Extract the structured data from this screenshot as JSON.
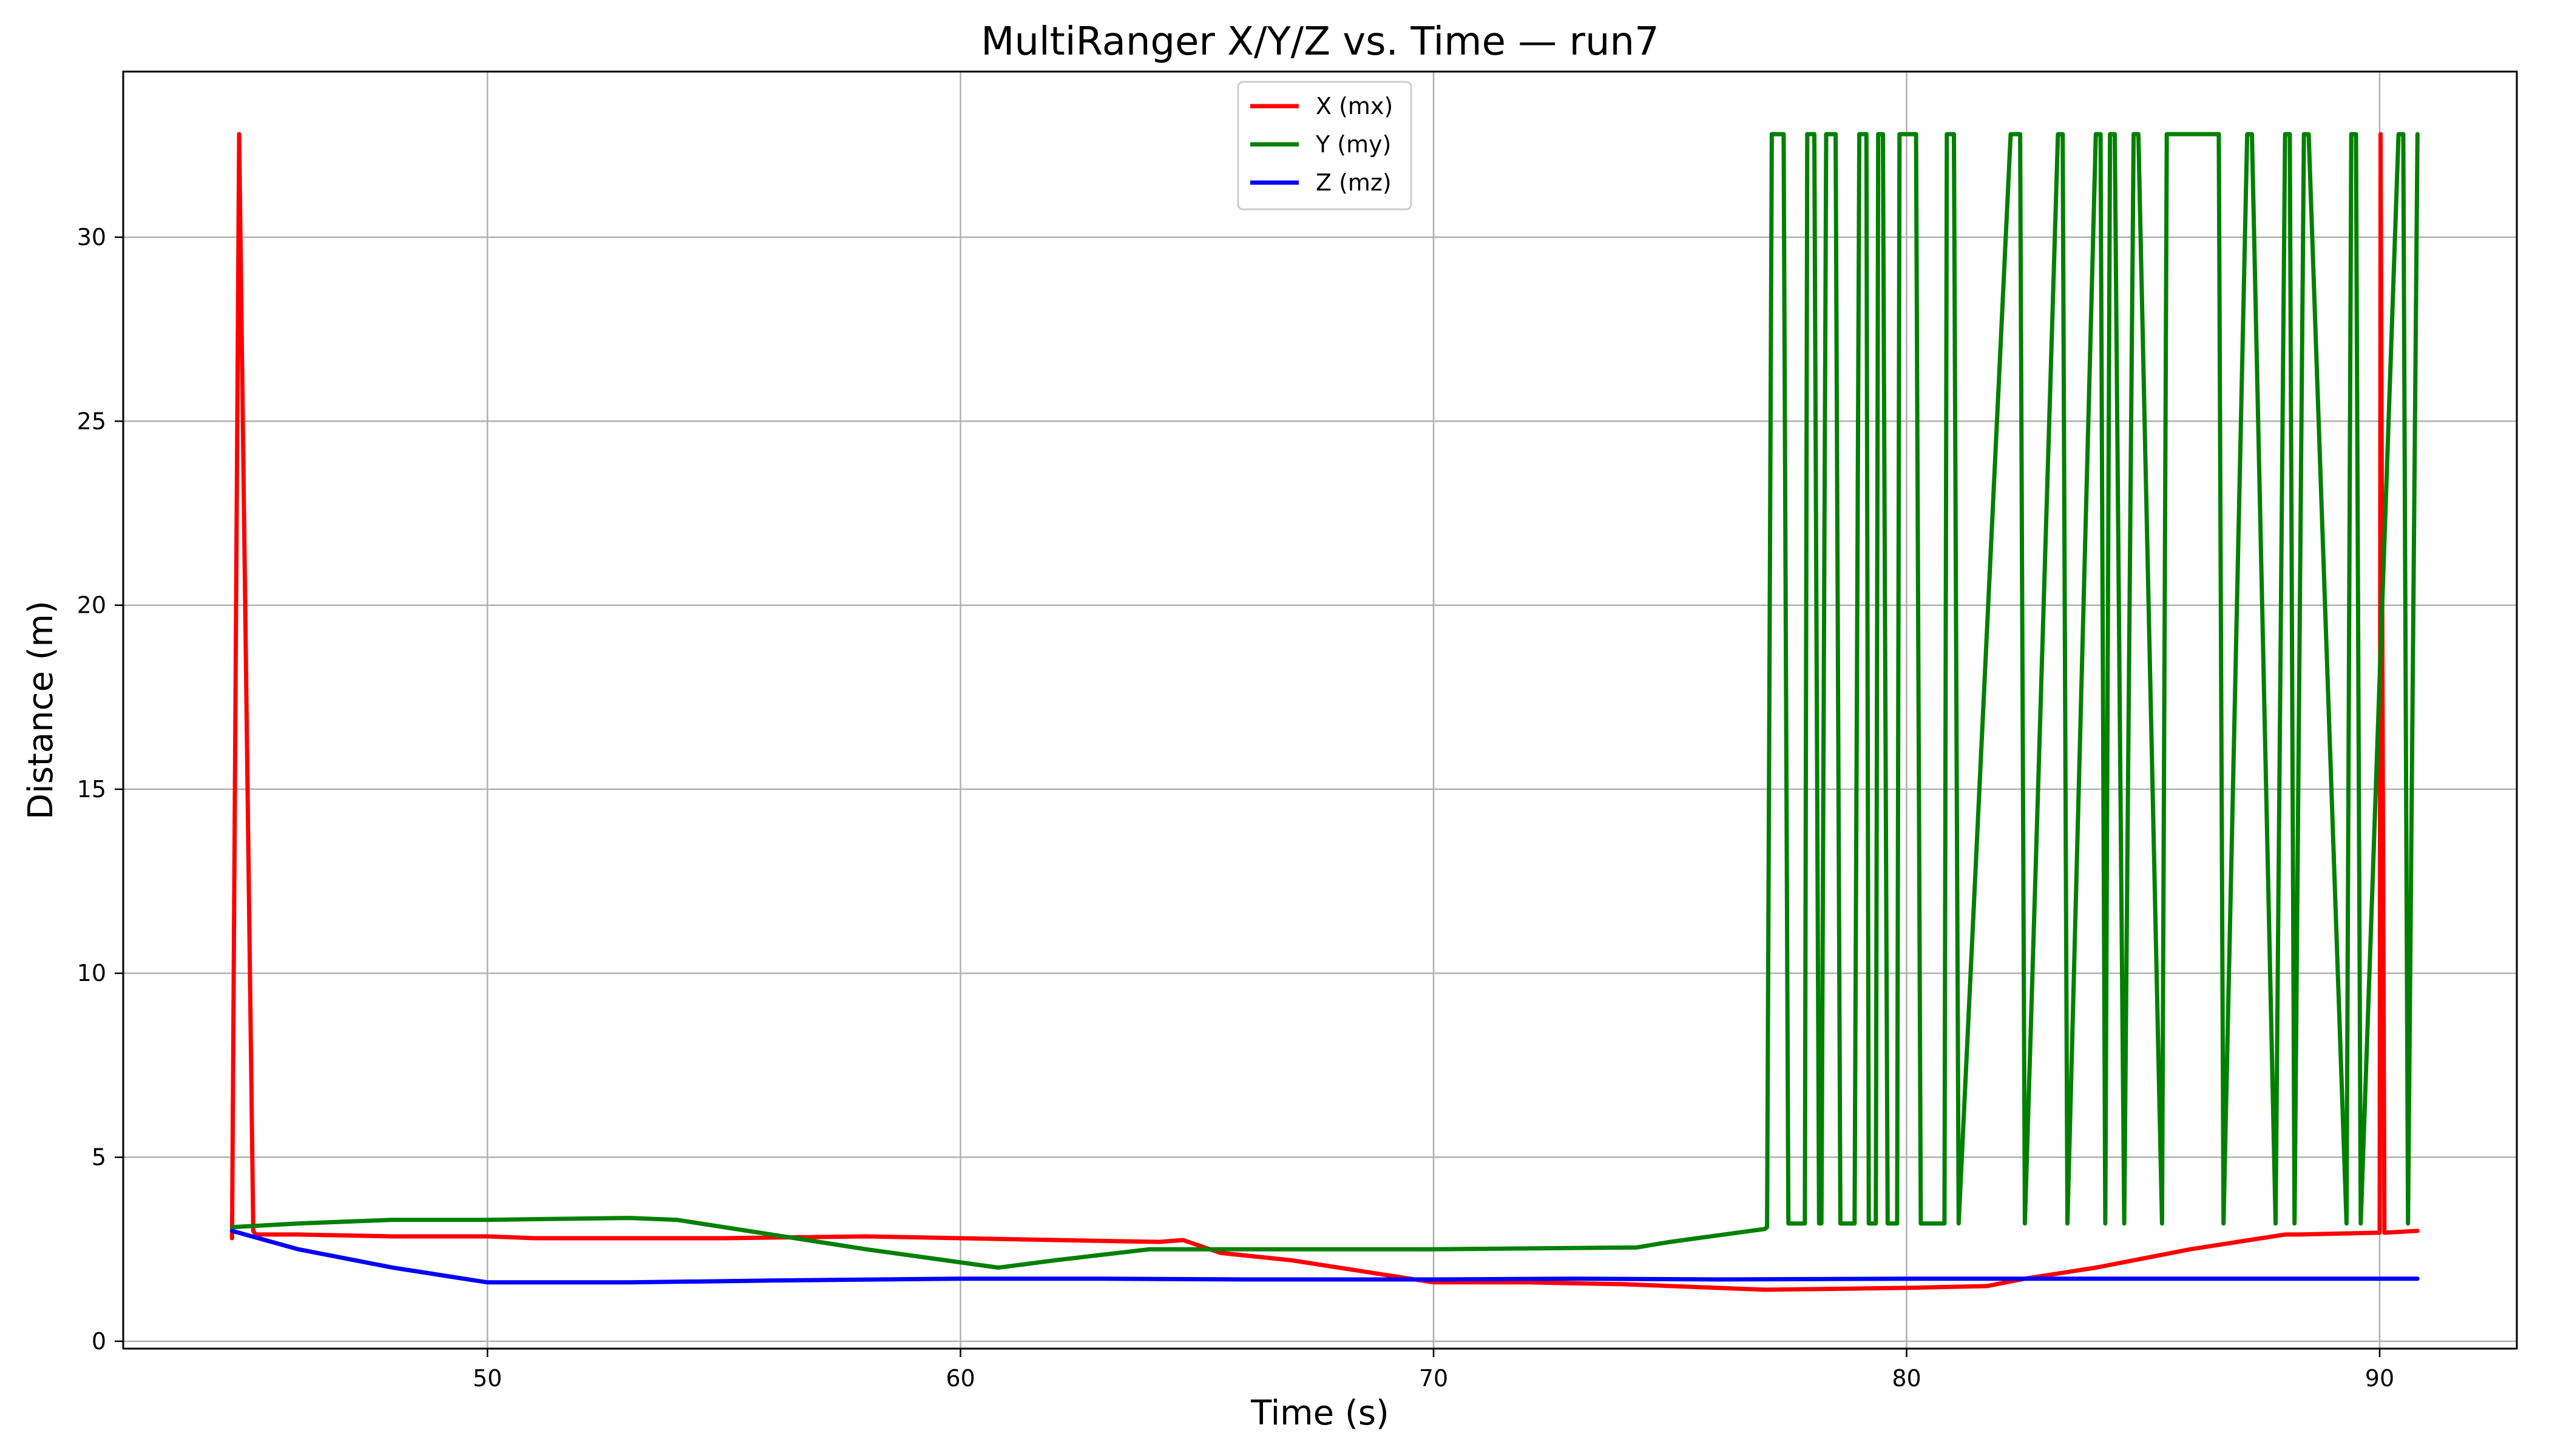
{
  "chart_data": {
    "type": "line",
    "title": "MultiRanger X/Y/Z vs. Time — run7",
    "xlabel": "Time (s)",
    "ylabel": "Distance (m)",
    "xlim": [
      42.3,
      92.9
    ],
    "ylim": [
      -0.2,
      34.5
    ],
    "xticks": [
      50,
      60,
      70,
      80,
      90
    ],
    "yticks": [
      0,
      5,
      10,
      15,
      20,
      25,
      30
    ],
    "grid": true,
    "legend_position": "top-center",
    "series": [
      {
        "name": "X (mx)",
        "color": "#ff0000",
        "x": [
          44.6,
          44.75,
          45.05,
          45.1,
          46,
          48,
          50,
          51,
          53,
          55,
          58,
          60,
          62,
          64.2,
          64.7,
          65.5,
          67,
          70,
          72,
          74,
          76,
          77,
          80,
          81.7,
          82.5,
          84,
          86,
          88,
          88.3,
          90,
          90.02,
          90.1,
          90.8
        ],
        "y": [
          2.8,
          32.8,
          3.0,
          2.9,
          2.9,
          2.85,
          2.85,
          2.8,
          2.8,
          2.8,
          2.85,
          2.8,
          2.75,
          2.7,
          2.75,
          2.4,
          2.2,
          1.6,
          1.6,
          1.55,
          1.45,
          1.4,
          1.45,
          1.5,
          1.7,
          2.0,
          2.5,
          2.9,
          2.9,
          2.95,
          32.8,
          2.95,
          3.0
        ]
      },
      {
        "name": "Y (my)",
        "color": "#008000",
        "x": [
          44.6,
          46,
          48,
          50,
          53,
          54,
          56,
          58,
          60.8,
          62,
          64,
          66,
          70,
          74.3,
          75,
          77,
          77.05,
          77.15,
          77.4,
          77.5,
          77.85,
          77.9,
          78.05,
          78.15,
          78.2,
          78.3,
          78.5,
          78.6,
          78.9,
          79.0,
          79.15,
          79.2,
          79.35,
          79.4,
          79.5,
          79.6,
          79.8,
          79.85,
          80.2,
          80.3,
          80.8,
          80.85,
          81.0,
          81.1,
          82.2,
          82.4,
          82.5,
          83.2,
          83.3,
          83.4,
          84.0,
          84.1,
          84.2,
          84.3,
          84.4,
          84.6,
          84.8,
          84.9,
          85.4,
          85.5,
          86.6,
          86.7,
          87.2,
          87.3,
          87.8,
          88.0,
          88.1,
          88.2,
          88.4,
          88.5,
          89.3,
          89.4,
          89.5,
          89.6,
          90.4,
          90.5,
          90.6,
          90.8
        ],
        "y": [
          3.1,
          3.2,
          3.3,
          3.3,
          3.35,
          3.3,
          2.9,
          2.5,
          2.0,
          2.2,
          2.5,
          2.5,
          2.5,
          2.55,
          2.7,
          3.05,
          3.1,
          32.8,
          32.8,
          3.2,
          3.2,
          32.8,
          32.8,
          3.2,
          3.2,
          32.8,
          32.8,
          3.2,
          3.2,
          32.8,
          32.8,
          3.2,
          3.2,
          32.8,
          32.8,
          3.2,
          3.2,
          32.8,
          32.8,
          3.2,
          3.2,
          32.8,
          32.8,
          3.2,
          32.8,
          32.8,
          3.2,
          32.8,
          32.8,
          3.2,
          32.8,
          32.8,
          3.2,
          32.8,
          32.8,
          3.2,
          32.8,
          32.8,
          3.2,
          32.8,
          32.8,
          3.2,
          32.8,
          32.8,
          3.2,
          32.8,
          32.8,
          3.2,
          32.8,
          32.8,
          3.2,
          32.8,
          32.8,
          3.2,
          32.8,
          32.8,
          3.2,
          32.8
        ]
      },
      {
        "name": "Z (mz)",
        "color": "#0000ff",
        "x": [
          44.6,
          46,
          48,
          50,
          50.7,
          53,
          56,
          60,
          63,
          66,
          70,
          73,
          76,
          80,
          84,
          88,
          90.8
        ],
        "y": [
          3.0,
          2.5,
          2.0,
          1.6,
          1.6,
          1.6,
          1.65,
          1.7,
          1.7,
          1.68,
          1.68,
          1.7,
          1.68,
          1.7,
          1.7,
          1.7,
          1.7
        ]
      }
    ]
  }
}
